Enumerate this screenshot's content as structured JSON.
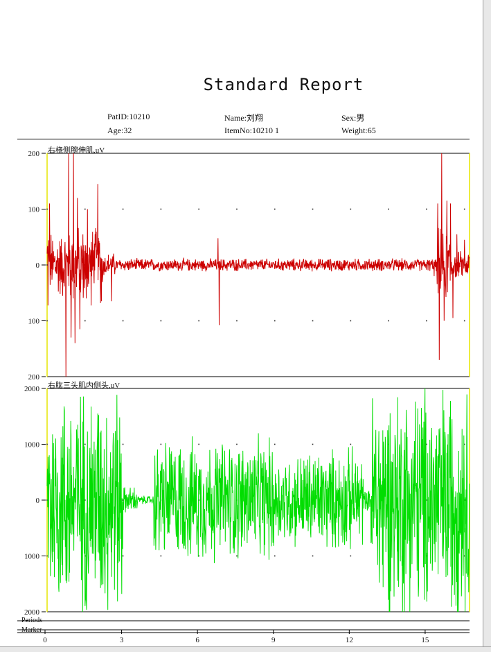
{
  "report": {
    "title": "Standard Report",
    "fields": {
      "patid": "PatID:10210",
      "name": "Name:刘翔",
      "sex": "Sex:男",
      "age": "Age:32",
      "itemno": "ItemNo:10210 1",
      "weight": "Weight:65"
    }
  },
  "colors": {
    "ch1": "#cc0000",
    "ch2": "#00dd00",
    "frame": "#e6e600"
  },
  "chart_data": [
    {
      "type": "line",
      "title": "右桡侧腕伸肌,uV",
      "ylim": [
        -200,
        200
      ],
      "yticks": [
        200,
        100,
        0,
        -100,
        -200
      ],
      "ytick_labels": [
        "200",
        "100",
        "0",
        "100",
        "200"
      ],
      "xlim": [
        0,
        16.7
      ],
      "grid": "dotted",
      "series": [
        {
          "color": "#cc0000",
          "noise": [
            [
              0,
              0.05,
              120
            ],
            [
              0.05,
              0.9,
              70
            ],
            [
              0.9,
              2.2,
              80
            ],
            [
              2.2,
              2.7,
              25
            ],
            [
              2.7,
              15.4,
              13
            ],
            [
              15.4,
              16.0,
              75
            ],
            [
              16.0,
              16.7,
              28
            ]
          ],
          "spikes": [
            [
              0.1,
              110
            ],
            [
              0.15,
              -100
            ],
            [
              0.75,
              -200
            ],
            [
              0.85,
              200
            ],
            [
              0.95,
              -130
            ],
            [
              1.05,
              200
            ],
            [
              1.1,
              -140
            ],
            [
              1.2,
              120
            ],
            [
              1.3,
              -115
            ],
            [
              1.55,
              -60
            ],
            [
              1.6,
              100
            ],
            [
              1.9,
              55
            ],
            [
              2.0,
              145
            ],
            [
              2.15,
              -65
            ],
            [
              2.55,
              -65
            ],
            [
              6.75,
              48
            ],
            [
              6.8,
              -108
            ],
            [
              15.3,
              -20
            ],
            [
              15.45,
              110
            ],
            [
              15.5,
              -170
            ],
            [
              15.6,
              200
            ],
            [
              15.7,
              -100
            ],
            [
              15.8,
              115
            ],
            [
              15.95,
              110
            ],
            [
              16.05,
              -95
            ],
            [
              16.2,
              55
            ],
            [
              16.5,
              45
            ]
          ]
        }
      ]
    },
    {
      "type": "line",
      "title": "右肱三头肌内侧头,uV",
      "ylim": [
        -2000,
        2000
      ],
      "yticks": [
        2000,
        1000,
        0,
        -1000,
        -2000
      ],
      "ytick_labels": [
        "2000",
        "1000",
        "0",
        "1000",
        "2000"
      ],
      "xlim": [
        0,
        16.7
      ],
      "xticks": [
        0,
        3,
        6,
        9,
        12,
        15
      ],
      "xtick_labels": [
        "0",
        "3",
        "6",
        "9",
        "12",
        "15"
      ],
      "grid": "dotted",
      "series": [
        {
          "color": "#00dd00",
          "noise": [
            [
              0,
              3.0,
              2300
            ],
            [
              3.0,
              3.6,
              280
            ],
            [
              3.6,
              4.2,
              90
            ],
            [
              4.2,
              9.0,
              1250
            ],
            [
              9.0,
              10.0,
              950
            ],
            [
              10.0,
              12.5,
              1050
            ],
            [
              12.5,
              12.8,
              200
            ],
            [
              12.8,
              16.7,
              2400
            ]
          ],
          "spikes": []
        }
      ]
    }
  ],
  "rows": {
    "periods": "Periods",
    "marker": "Marker"
  }
}
